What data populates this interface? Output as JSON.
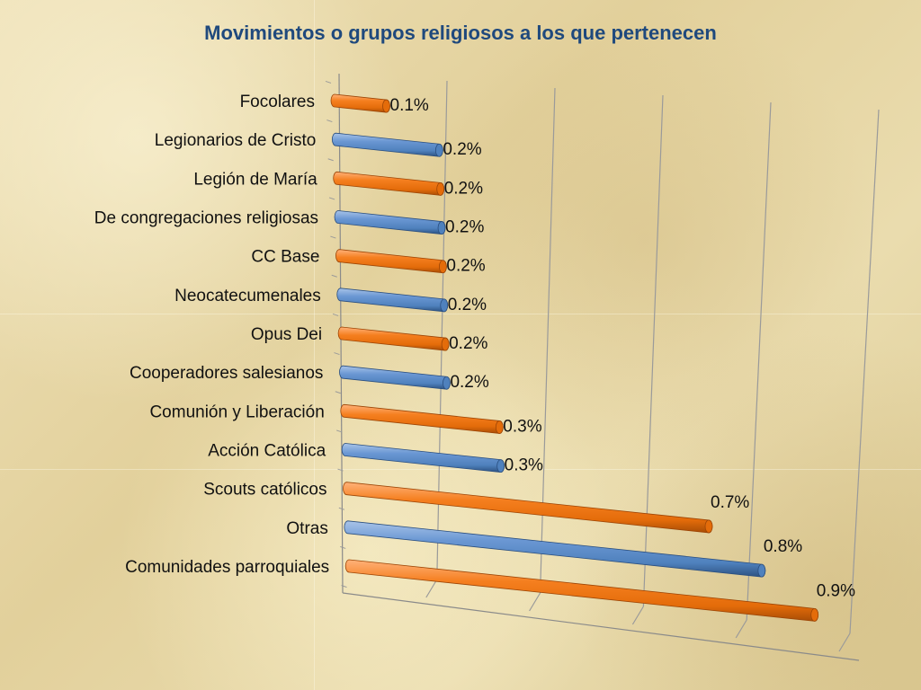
{
  "chart_data": {
    "type": "bar",
    "orientation": "horizontal",
    "title": "Movimientos o grupos religiosos a los que pertenecen",
    "categories": [
      "Focolares",
      "Legionarios de Cristo",
      "Legión de María",
      "De congregaciones religiosas",
      "CC Base",
      "Neocatecumenales",
      "Opus Dei",
      "Cooperadores salesianos",
      "Comunión y Liberación",
      "Acción Católica",
      "Scouts católicos",
      "Otras",
      "Comunidades parroquiales"
    ],
    "values": [
      0.1,
      0.2,
      0.2,
      0.2,
      0.2,
      0.2,
      0.2,
      0.2,
      0.3,
      0.3,
      0.7,
      0.8,
      0.9
    ],
    "value_labels": [
      "0.1%",
      "0.2%",
      "0.2%",
      "0.2%",
      "0.2%",
      "0.2%",
      "0.2%",
      "0.2%",
      "0.3%",
      "0.3%",
      "0.7%",
      "0.8%",
      "0.9%"
    ],
    "bar_colors": [
      "#e46c0a",
      "#4f81bd",
      "#e46c0a",
      "#4f81bd",
      "#e46c0a",
      "#4f81bd",
      "#e46c0a",
      "#4f81bd",
      "#e46c0a",
      "#4f81bd",
      "#e46c0a",
      "#4f81bd",
      "#e46c0a"
    ],
    "xlim": [
      0,
      1.0
    ],
    "style": "3d-cylinder",
    "grid": true
  }
}
